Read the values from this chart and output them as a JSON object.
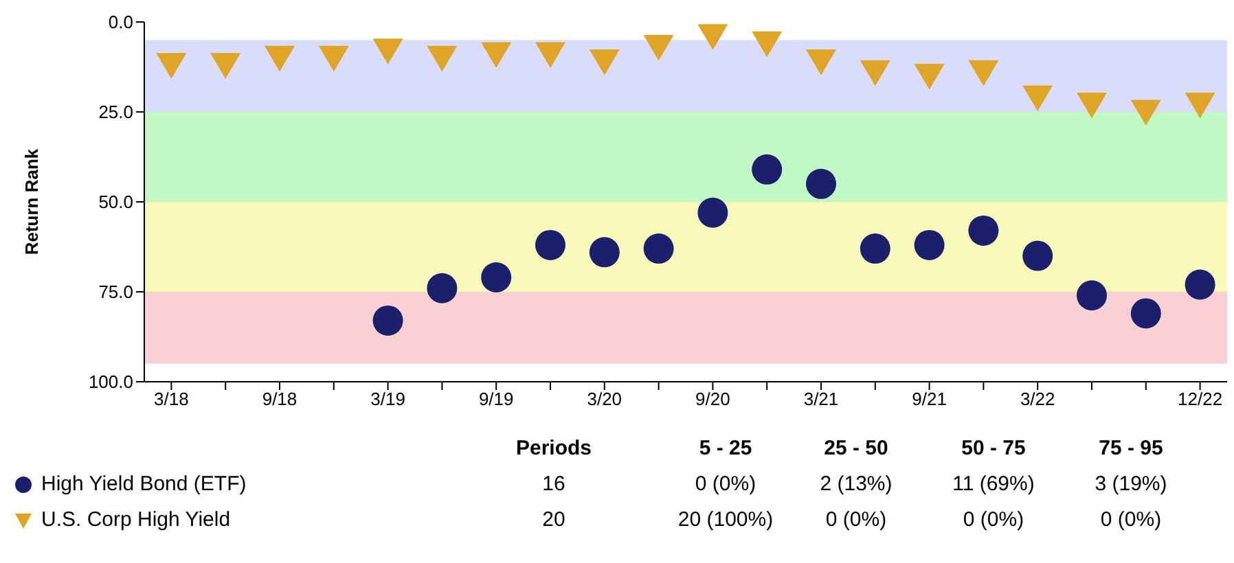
{
  "chart_data": {
    "type": "scatter",
    "ylabel": "Return Rank",
    "categories": [
      "3/18",
      null,
      "9/18",
      null,
      "3/19",
      null,
      "9/19",
      null,
      "3/20",
      null,
      "9/20",
      null,
      "3/21",
      null,
      "9/21",
      null,
      "3/22",
      null,
      null,
      "12/22"
    ],
    "series": [
      {
        "name": "High Yield Bond (ETF)",
        "color": "#1c1f6b",
        "marker": "circle",
        "values": [
          null,
          null,
          null,
          null,
          83,
          74,
          71,
          62,
          64,
          63,
          53,
          41,
          45,
          63,
          62,
          58,
          65,
          76,
          81,
          73
        ]
      },
      {
        "name": "U.S. Corp High Yield",
        "color": "#e0a526",
        "marker": "triangle",
        "values": [
          12,
          12,
          10,
          10,
          8,
          10,
          9,
          9,
          11,
          7,
          4,
          6,
          11,
          14,
          15,
          14,
          21,
          23,
          25,
          23
        ]
      }
    ],
    "ylim": [
      100,
      0
    ],
    "yticks": [
      {
        "value": 0,
        "label": "0.0"
      },
      {
        "value": 25,
        "label": "25.0"
      },
      {
        "value": 50,
        "label": "50.0"
      },
      {
        "value": 75,
        "label": "75.0"
      },
      {
        "value": 100,
        "label": "100.0"
      }
    ],
    "bands": [
      {
        "axis": "y",
        "from": 5,
        "to": 25,
        "color": "#d9dcfb"
      },
      {
        "axis": "y",
        "from": 25,
        "to": 50,
        "color": "#c2f7c6"
      },
      {
        "axis": "y",
        "from": 50,
        "to": 75,
        "color": "#f7f9b8"
      },
      {
        "axis": "y",
        "from": 75,
        "to": 95,
        "color": "#f9d1d5"
      }
    ],
    "annotations": [
      "Periods",
      "5 - 25",
      "25 - 50",
      "50 - 75",
      "75 - 95",
      "16",
      "0 (0%)",
      "2 (13%)",
      "11 (69%)",
      "3 (19%)",
      "20",
      "20 (100%)",
      "0 (0%)",
      "0 (0%)",
      "0 (0%)"
    ],
    "legend": "bottom",
    "grid": false
  }
}
